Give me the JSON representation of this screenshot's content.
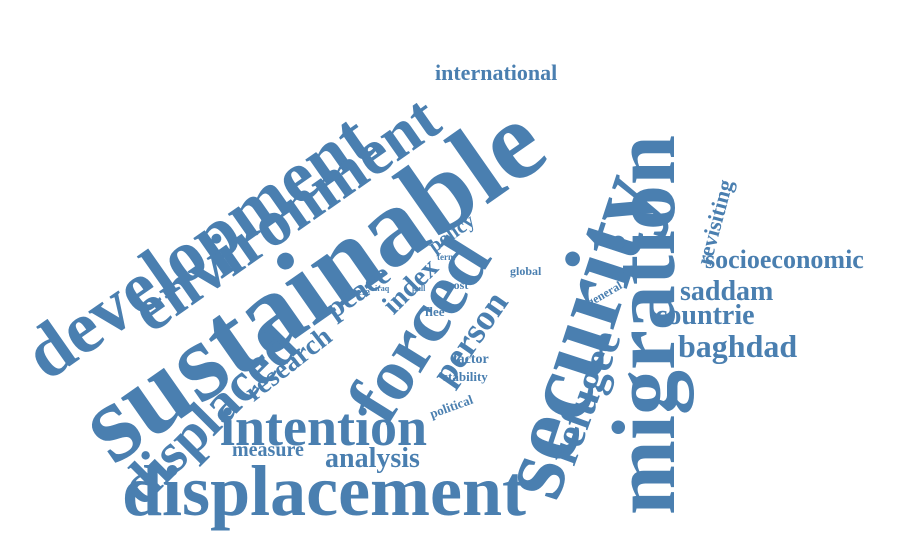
{
  "words": [
    {
      "text": "sustainable",
      "frequency": 100
    },
    {
      "text": "displacement",
      "frequency": 88
    },
    {
      "text": "security",
      "frequency": 90
    },
    {
      "text": "migration",
      "frequency": 86
    },
    {
      "text": "forced",
      "frequency": 84
    },
    {
      "text": "development",
      "frequency": 75
    },
    {
      "text": "environment",
      "frequency": 68
    },
    {
      "text": "intention",
      "frequency": 60
    },
    {
      "text": "displaced",
      "frequency": 58
    },
    {
      "text": "refugee",
      "frequency": 50
    },
    {
      "text": "person",
      "frequency": 40
    },
    {
      "text": "peace",
      "frequency": 38
    },
    {
      "text": "research",
      "frequency": 34
    },
    {
      "text": "index",
      "frequency": 30
    },
    {
      "text": "analysis",
      "frequency": 30
    },
    {
      "text": "baghdad",
      "frequency": 32
    },
    {
      "text": "saddam",
      "frequency": 28
    },
    {
      "text": "countrie",
      "frequency": 27
    },
    {
      "text": "socioeconomic",
      "frequency": 25
    },
    {
      "text": "international",
      "frequency": 23
    },
    {
      "text": "revisiting",
      "frequency": 21
    },
    {
      "text": "measure",
      "frequency": 20
    },
    {
      "text": "policy",
      "frequency": 19
    },
    {
      "text": "factor",
      "frequency": 14
    },
    {
      "text": "stability",
      "frequency": 13
    },
    {
      "text": "political",
      "frequency": 12
    },
    {
      "text": "flee",
      "frequency": 13
    },
    {
      "text": "general",
      "frequency": 12
    },
    {
      "text": "post",
      "frequency": 11
    },
    {
      "text": "global",
      "frequency": 11
    },
    {
      "text": "article",
      "frequency": 11
    },
    {
      "text": "term",
      "frequency": 9
    },
    {
      "text": "iraq",
      "frequency": 8
    },
    {
      "text": "pull",
      "frequency": 8
    }
  ]
}
